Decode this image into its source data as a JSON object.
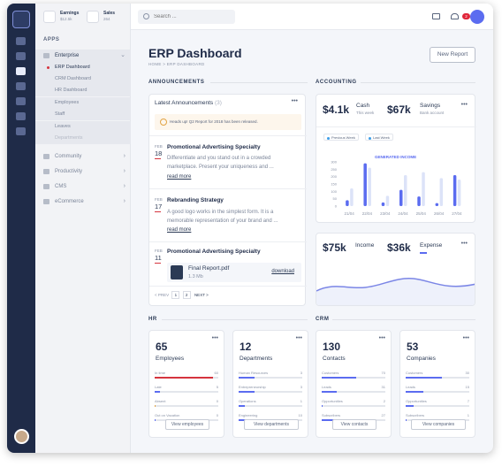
{
  "sidebar": {
    "stats": [
      {
        "label": "Earnings",
        "value": "$12.5k"
      },
      {
        "label": "Sales",
        "value": "264"
      }
    ],
    "apps_heading": "APPS",
    "groups": [
      {
        "label": "Enterprise"
      },
      {
        "label": "Community"
      },
      {
        "label": "Productivity"
      },
      {
        "label": "CMS"
      },
      {
        "label": "eCommerce"
      }
    ],
    "enterprise_items": [
      "ERP Dashboard",
      "CRM Dashboard",
      "HR Dashboard",
      "Employees",
      "Staff",
      "Leaves",
      "Departments"
    ]
  },
  "topbar": {
    "search_placeholder": "Search ...",
    "notification_count": "2"
  },
  "page": {
    "title": "ERP Dashboard",
    "breadcrumb": "HOME > ERP DASHBOARD",
    "new_report": "New Report"
  },
  "sections": {
    "announcements": "ANNOUNCEMENTS",
    "accounting": "ACCOUNTING",
    "hr": "HR",
    "crm": "CRM"
  },
  "announcements": {
    "heading": "Latest Announcements",
    "count": "(3)",
    "alert": "Heads up! Q2 Report for 2018 has been released.",
    "items": [
      {
        "month": "FEB",
        "day": "18",
        "title": "Promotional Advertising Specialty",
        "body": "Differentiate and you stand out in a crowded marketplace. Present your uniqueness and ...",
        "read_more": "read more"
      },
      {
        "month": "FEB",
        "day": "17",
        "title": "Rebranding Strategy",
        "body": "A good logo works in the simplest form. It is a memorable representation of your brand and ...",
        "read_more": "read more"
      },
      {
        "month": "FEB",
        "day": "11",
        "title": "Promotional Advertising Specialty"
      }
    ],
    "file": {
      "name": "Final Report.pdf",
      "size": "1.3 Mb",
      "action": "download"
    },
    "pager": {
      "prev": "< PREV",
      "pages": [
        "1",
        "2"
      ],
      "next": "NEXT >"
    }
  },
  "accounting": {
    "cash_value": "$4.1k",
    "cash_label": "Cash",
    "cash_sub": "This week",
    "savings_value": "$67k",
    "savings_label": "Savings",
    "savings_sub": "Bank account",
    "legend": [
      "Previous Week",
      "Last Week"
    ],
    "chart_title": "GENERATED INCOME",
    "income_value": "$75k",
    "income_label": "Income",
    "expense_value": "$36k",
    "expense_label": "Expense"
  },
  "chart_data": {
    "type": "bar",
    "title": "GENERATED INCOME",
    "categories": [
      "21/04",
      "22/04",
      "23/04",
      "24/04",
      "25/04",
      "26/04",
      "27/04"
    ],
    "yticks": [
      0,
      50,
      100,
      150,
      200,
      250,
      300
    ],
    "ylim": [
      0,
      300
    ],
    "series": [
      {
        "name": "Previous Week",
        "values": [
          40,
          290,
          25,
          110,
          65,
          20,
          210
        ]
      },
      {
        "name": "Last Week",
        "values": [
          120,
          260,
          70,
          210,
          230,
          190,
          180
        ]
      }
    ]
  },
  "hr_cards": [
    {
      "value": "65",
      "label": "Employees",
      "button": "View employees",
      "rows": [
        {
          "label": "In time",
          "value": "60",
          "frac": 0.92,
          "color": "#d5343e"
        },
        {
          "label": "Late",
          "value": "5",
          "frac": 0.08,
          "color": "#5b6cf0"
        },
        {
          "label": "Absent",
          "value": "0",
          "frac": 0.02,
          "color": "#e2a444"
        },
        {
          "label": "Out on Vacation",
          "value": "0",
          "frac": 0.02,
          "color": "#5b6cf0"
        }
      ]
    },
    {
      "value": "12",
      "label": "Departments",
      "button": "View departments",
      "rows": [
        {
          "label": "Human Resources",
          "value": "3",
          "frac": 0.25,
          "color": "#5b6cf0"
        },
        {
          "label": "Entrepreneurship",
          "value": "3",
          "frac": 0.25,
          "color": "#5b6cf0"
        },
        {
          "label": "Operations",
          "value": "1",
          "frac": 0.1,
          "color": "#5b6cf0"
        },
        {
          "label": "Engineering",
          "value": "10",
          "frac": 0.83,
          "color": "#5b6cf0"
        }
      ]
    }
  ],
  "crm_cards": [
    {
      "value": "130",
      "label": "Contacts",
      "button": "View contacts",
      "rows": [
        {
          "label": "Customers",
          "value": "70",
          "frac": 0.54,
          "color": "#5b6cf0"
        },
        {
          "label": "Leads",
          "value": "31",
          "frac": 0.24,
          "color": "#5b6cf0"
        },
        {
          "label": "Opportunities",
          "value": "2",
          "frac": 0.02,
          "color": "#5b6cf0"
        },
        {
          "label": "Subscribers",
          "value": "27",
          "frac": 0.21,
          "color": "#5b6cf0"
        }
      ]
    },
    {
      "value": "53",
      "label": "Companies",
      "button": "View companies",
      "rows": [
        {
          "label": "Customers",
          "value": "30",
          "frac": 0.57,
          "color": "#5b6cf0"
        },
        {
          "label": "Leads",
          "value": "15",
          "frac": 0.28,
          "color": "#5b6cf0"
        },
        {
          "label": "Opportunities",
          "value": "7",
          "frac": 0.13,
          "color": "#5b6cf0"
        },
        {
          "label": "Subscribers",
          "value": "1",
          "frac": 0.02,
          "color": "#5b6cf0"
        }
      ]
    }
  ]
}
